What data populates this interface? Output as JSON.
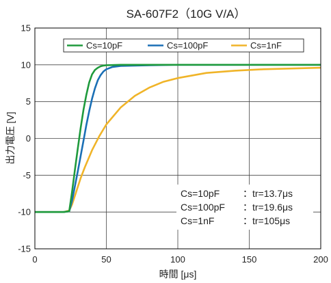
{
  "chart_data": {
    "type": "line",
    "title": "SA-607F2（10G V/A）",
    "xlabel": "時間 [μs]",
    "ylabel": "出力電圧 [V]",
    "xlim": [
      0,
      200
    ],
    "ylim": [
      -15,
      15
    ],
    "xticks": [
      0,
      50,
      100,
      150,
      200
    ],
    "yticks": [
      15,
      10,
      5,
      0,
      -5,
      -10,
      -15
    ],
    "grid": true,
    "legend_position": "top",
    "series": [
      {
        "name": "Cs=10pF",
        "color": "#1e9a3c",
        "x": [
          0,
          10,
          20,
          24,
          26,
          28,
          30,
          32,
          34,
          36,
          38,
          40,
          42,
          44,
          46,
          48,
          50,
          60,
          80,
          100,
          150,
          200
        ],
        "y": [
          -10,
          -10,
          -10,
          -9.9,
          -7.3,
          -4.3,
          -1.4,
          1.4,
          3.9,
          5.9,
          7.6,
          8.7,
          9.3,
          9.6,
          9.8,
          9.9,
          9.95,
          10,
          10,
          10,
          10,
          10
        ]
      },
      {
        "name": "Cs=100pF",
        "color": "#1a6fb5",
        "x": [
          0,
          10,
          20,
          24,
          26,
          28,
          30,
          32,
          34,
          36,
          38,
          40,
          42,
          44,
          46,
          48,
          50,
          54,
          60,
          80,
          100,
          150,
          200
        ],
        "y": [
          -10,
          -10,
          -10,
          -9.9,
          -8.5,
          -6.5,
          -4.5,
          -2.4,
          -0.3,
          1.8,
          3.7,
          5.4,
          6.8,
          7.9,
          8.6,
          9.1,
          9.4,
          9.7,
          9.85,
          9.95,
          10,
          10,
          10
        ]
      },
      {
        "name": "Cs=1nF",
        "color": "#f0b428",
        "x": [
          0,
          10,
          20,
          24,
          26,
          28,
          30,
          32,
          35,
          40,
          45,
          50,
          60,
          70,
          80,
          90,
          100,
          120,
          140,
          160,
          180,
          200
        ],
        "y": [
          -10,
          -10,
          -10,
          -9.8,
          -9.0,
          -7.8,
          -6.6,
          -5.4,
          -3.9,
          -1.6,
          0.3,
          1.9,
          4.2,
          5.8,
          6.9,
          7.7,
          8.2,
          8.9,
          9.2,
          9.4,
          9.5,
          9.6
        ]
      }
    ],
    "annotations": [
      {
        "label": "Cs=10pF",
        "value": "：tr=13.7μs"
      },
      {
        "label": "Cs=100pF",
        "value": "：tr=19.6μs"
      },
      {
        "label": "Cs=1nF",
        "value": "：tr=105μs"
      }
    ]
  }
}
